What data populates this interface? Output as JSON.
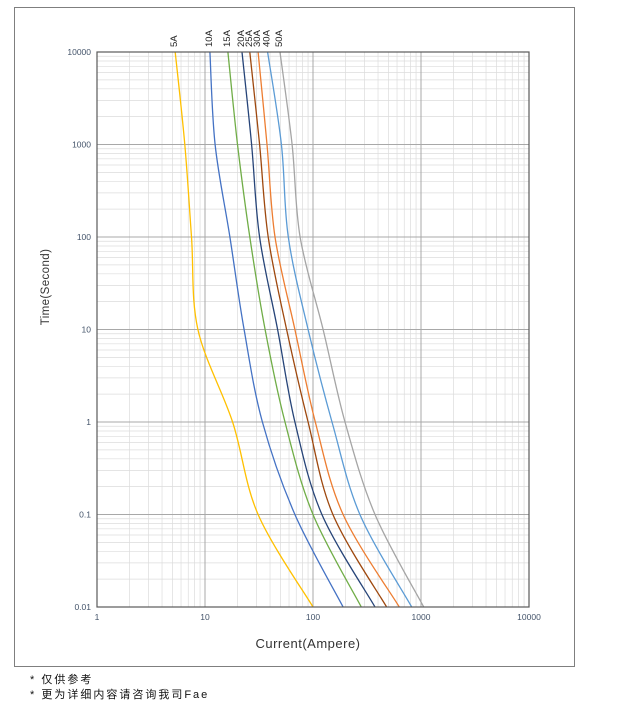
{
  "page": {
    "background": "#ffffff",
    "frame_border_color": "#7f7f7f"
  },
  "chart_data": {
    "type": "line",
    "title": "",
    "xlabel": "Current(Ampere)",
    "ylabel": "Time(Second)",
    "x_scale": "log",
    "y_scale": "log",
    "xlim": [
      1,
      10000
    ],
    "ylim": [
      0.01,
      10000
    ],
    "x_tick_labels": [
      "1",
      "10",
      "100",
      "1000",
      "10000"
    ],
    "y_tick_labels": [
      "10000",
      "1000",
      "100",
      "10",
      "1",
      "0.1",
      "0.01"
    ],
    "grid": {
      "on": true,
      "minor_color": "#dcdcdc",
      "major_color": "#a8a8a8",
      "border_color": "#595959"
    },
    "tick_label_color": "#44546A",
    "curve_label_color": "#262626",
    "legend_position": "rotated-labels-above-curve-tops",
    "series": [
      {
        "name": "5A",
        "color": "#FFC000",
        "points": [
          [
            5.3,
            10000
          ],
          [
            6.5,
            1000
          ],
          [
            7.5,
            100
          ],
          [
            8.6,
            10
          ],
          [
            18,
            1
          ],
          [
            31,
            0.1
          ],
          [
            100,
            0.01
          ]
        ]
      },
      {
        "name": "10A",
        "color": "#4472C4",
        "points": [
          [
            11.1,
            10000
          ],
          [
            12.4,
            1000
          ],
          [
            17,
            100
          ],
          [
            23,
            10
          ],
          [
            34,
            1
          ],
          [
            68,
            0.1
          ],
          [
            190,
            0.01
          ]
        ]
      },
      {
        "name": "15A",
        "color": "#70AD47",
        "points": [
          [
            16.3,
            10000
          ],
          [
            20,
            1000
          ],
          [
            26,
            100
          ],
          [
            36,
            10
          ],
          [
            55,
            1
          ],
          [
            100,
            0.1
          ],
          [
            280,
            0.01
          ]
        ]
      },
      {
        "name": "20A",
        "color": "#264478",
        "points": [
          [
            22,
            10000
          ],
          [
            27,
            1000
          ],
          [
            32,
            100
          ],
          [
            47,
            10
          ],
          [
            68,
            1
          ],
          [
            121,
            0.1
          ],
          [
            375,
            0.01
          ]
        ]
      },
      {
        "name": "25A",
        "color": "#9E480E",
        "points": [
          [
            26,
            10000
          ],
          [
            32,
            1000
          ],
          [
            38.5,
            100
          ],
          [
            57,
            10
          ],
          [
            90,
            1
          ],
          [
            153,
            0.1
          ],
          [
            480,
            0.01
          ]
        ]
      },
      {
        "name": "30A",
        "color": "#ED7D31",
        "points": [
          [
            31,
            10000
          ],
          [
            37.5,
            1000
          ],
          [
            44.5,
            100
          ],
          [
            68,
            10
          ],
          [
            105,
            1
          ],
          [
            190,
            0.1
          ],
          [
            630,
            0.01
          ]
        ]
      },
      {
        "name": "40A",
        "color": "#5B9BD5",
        "points": [
          [
            38,
            10000
          ],
          [
            51,
            1000
          ],
          [
            59,
            100
          ],
          [
            90,
            10
          ],
          [
            150,
            1
          ],
          [
            272,
            0.1
          ],
          [
            820,
            0.01
          ]
        ]
      },
      {
        "name": "50A",
        "color": "#A5A5A5",
        "points": [
          [
            49.5,
            10000
          ],
          [
            64,
            1000
          ],
          [
            76,
            100
          ],
          [
            124,
            10
          ],
          [
            198,
            1
          ],
          [
            375,
            0.1
          ],
          [
            1060,
            0.01
          ]
        ]
      }
    ]
  },
  "footnotes": [
    "* 仅供参考",
    "* 更为详细内容请咨询我司Fae"
  ]
}
